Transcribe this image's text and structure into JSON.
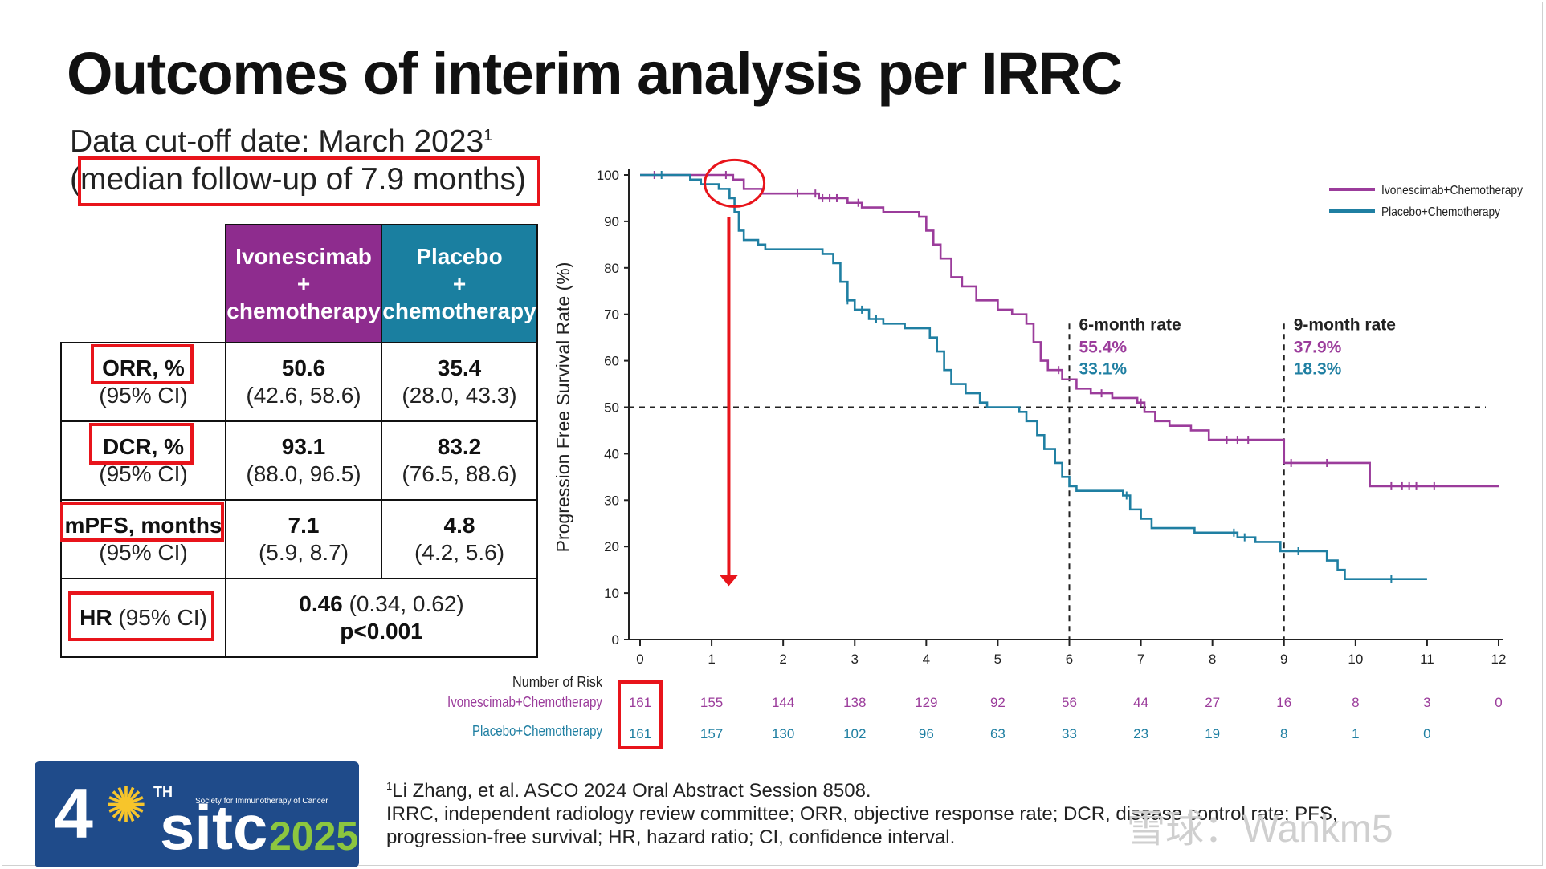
{
  "title": "Outcomes of interim analysis per IRRC",
  "cutoff": {
    "text": "Data cut-off date: March 2023",
    "sup": "1"
  },
  "followup": "(median follow-up of 7.9 months)",
  "table": {
    "headers": {
      "ivo": [
        "Ivonescimab",
        "+",
        "chemotherapy"
      ],
      "pbo": [
        "Placebo",
        "+",
        "chemotherapy"
      ]
    },
    "rows": [
      {
        "label": "ORR, %",
        "sub": "(95% CI)",
        "ivo": "50.6",
        "ivo_ci": "(42.6, 58.6)",
        "pbo": "35.4",
        "pbo_ci": "(28.0, 43.3)"
      },
      {
        "label": "DCR, %",
        "sub": "(95% CI)",
        "ivo": "93.1",
        "ivo_ci": "(88.0, 96.5)",
        "pbo": "83.2",
        "pbo_ci": "(76.5, 88.6)"
      },
      {
        "label": "mPFS, months",
        "sub": "(95% CI)",
        "ivo": "7.1",
        "ivo_ci": "(5.9, 8.7)",
        "pbo": "4.8",
        "pbo_ci": "(4.2, 5.6)"
      }
    ],
    "hr": {
      "label_bold": "HR",
      "label_rest": " (95% CI)",
      "value": "0.46",
      "ci": " (0.34, 0.62)",
      "p": "p<0.001"
    }
  },
  "chart_data": {
    "type": "line",
    "title": "",
    "ylabel": "Progression Free Survival Rate (%)",
    "xlabel": "",
    "xlim": [
      0,
      12
    ],
    "ylim": [
      0,
      100
    ],
    "x_ticks": [
      0,
      1,
      2,
      3,
      4,
      5,
      6,
      7,
      8,
      9,
      10,
      11,
      12
    ],
    "y_ticks": [
      0,
      10,
      20,
      30,
      40,
      50,
      60,
      70,
      80,
      90,
      100
    ],
    "reference_line_y": 50,
    "series": [
      {
        "name": "Ivonescimab+Chemotherapy",
        "color": "#9b3c9b",
        "steps": [
          [
            0,
            100
          ],
          [
            1.3,
            99
          ],
          [
            1.45,
            97
          ],
          [
            1.7,
            96
          ],
          [
            2.5,
            95
          ],
          [
            2.9,
            94
          ],
          [
            3.1,
            93
          ],
          [
            3.4,
            92
          ],
          [
            3.9,
            91
          ],
          [
            4.0,
            88
          ],
          [
            4.1,
            85
          ],
          [
            4.2,
            82
          ],
          [
            4.35,
            78
          ],
          [
            4.5,
            76
          ],
          [
            4.7,
            73
          ],
          [
            5.0,
            71
          ],
          [
            5.2,
            70
          ],
          [
            5.4,
            68
          ],
          [
            5.5,
            64
          ],
          [
            5.6,
            60
          ],
          [
            5.7,
            58
          ],
          [
            5.9,
            56
          ],
          [
            6.1,
            54
          ],
          [
            6.3,
            53
          ],
          [
            6.6,
            52
          ],
          [
            6.95,
            51
          ],
          [
            7.05,
            49
          ],
          [
            7.2,
            47
          ],
          [
            7.4,
            46
          ],
          [
            7.7,
            45
          ],
          [
            7.95,
            43
          ],
          [
            9.0,
            38
          ],
          [
            10.2,
            33
          ],
          [
            12.0,
            33
          ]
        ],
        "censor_x": [
          0.2,
          1.2,
          2.2,
          2.45,
          2.55,
          2.65,
          2.75,
          3.05,
          5.85,
          6.45,
          7.0,
          8.2,
          8.35,
          8.5,
          9.1,
          9.6,
          10.5,
          10.65,
          10.75,
          10.85,
          11.1
        ]
      },
      {
        "name": "Placebo+Chemotherapy",
        "color": "#1f7fa2",
        "steps": [
          [
            0,
            100
          ],
          [
            0.7,
            99
          ],
          [
            0.85,
            98
          ],
          [
            1.1,
            97
          ],
          [
            1.25,
            95
          ],
          [
            1.32,
            92
          ],
          [
            1.38,
            88
          ],
          [
            1.45,
            86
          ],
          [
            1.65,
            85
          ],
          [
            1.75,
            84
          ],
          [
            2.55,
            83
          ],
          [
            2.7,
            81
          ],
          [
            2.8,
            77
          ],
          [
            2.9,
            73
          ],
          [
            3.0,
            71
          ],
          [
            3.2,
            69
          ],
          [
            3.4,
            68
          ],
          [
            3.7,
            67
          ],
          [
            4.05,
            65
          ],
          [
            4.15,
            62
          ],
          [
            4.25,
            58
          ],
          [
            4.35,
            55
          ],
          [
            4.55,
            53
          ],
          [
            4.75,
            51
          ],
          [
            4.85,
            50
          ],
          [
            5.3,
            49
          ],
          [
            5.4,
            47
          ],
          [
            5.55,
            44
          ],
          [
            5.65,
            41
          ],
          [
            5.8,
            38
          ],
          [
            5.9,
            35
          ],
          [
            6.0,
            33
          ],
          [
            6.1,
            32
          ],
          [
            6.75,
            31
          ],
          [
            6.85,
            28
          ],
          [
            7.0,
            26
          ],
          [
            7.15,
            24
          ],
          [
            7.75,
            23
          ],
          [
            8.35,
            22
          ],
          [
            8.6,
            21
          ],
          [
            8.95,
            19
          ],
          [
            9.6,
            17
          ],
          [
            9.75,
            15
          ],
          [
            9.85,
            13
          ],
          [
            11.0,
            13
          ]
        ],
        "censor_x": [
          0.3,
          2.9,
          3.1,
          3.3,
          6.8,
          8.3,
          8.45,
          9.2,
          10.5
        ]
      }
    ],
    "annotations": [
      {
        "x": 6,
        "label": "6-month rate",
        "ivo": "55.4%",
        "pbo": "33.1%"
      },
      {
        "x": 9,
        "label": "9-month rate",
        "ivo": "37.9%",
        "pbo": "18.3%"
      }
    ],
    "risk_table": {
      "header": "Number of Risk",
      "times": [
        0,
        1,
        2,
        3,
        4,
        5,
        6,
        7,
        8,
        9,
        10,
        11,
        12
      ],
      "ivo": [
        "161",
        "155",
        "144",
        "138",
        "129",
        "92",
        "56",
        "44",
        "27",
        "16",
        "8",
        "3",
        "0"
      ],
      "pbo": [
        "161",
        "157",
        "130",
        "102",
        "96",
        "63",
        "33",
        "23",
        "19",
        "8",
        "1",
        "0"
      ]
    }
  },
  "footnote": {
    "sup": "1",
    "lines": [
      "Li Zhang, et al. ASCO 2024 Oral Abstract Session 8508.",
      "IRRC, independent radiology review committee; ORR, objective response rate; DCR, disease control rate; PFS,",
      "progression-free survival; HR, hazard ratio; CI, confidence interval."
    ]
  },
  "logo": {
    "four": "4",
    "th": "TH",
    "sitc": "sitc",
    "year": "2025",
    "society": "Society for Immunotherapy of Cancer"
  },
  "watermark": "雪球：Wankm5"
}
